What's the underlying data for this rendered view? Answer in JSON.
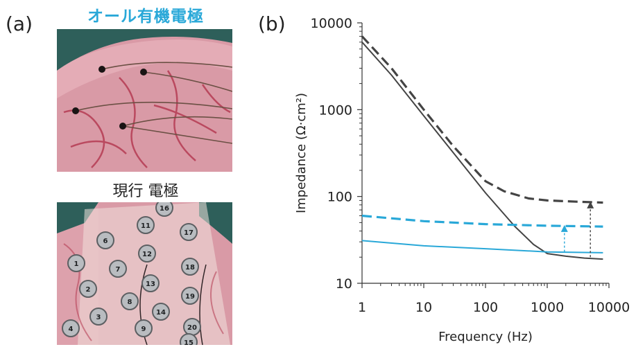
{
  "panels": {
    "a_label": "(a)",
    "b_label": "(b)",
    "organic_caption": "オール有機電極",
    "current_caption": "現行 電極"
  },
  "electrode_numbers": [
    "16",
    "11",
    "17",
    "6",
    "12",
    "1",
    "7",
    "18",
    "13",
    "2",
    "19",
    "8",
    "14",
    "3",
    "9",
    "20",
    "4",
    "15"
  ],
  "colors": {
    "organic": "#29a8d8",
    "current": "#444444",
    "tissue": "#d99aa6"
  },
  "chart_data": {
    "type": "line",
    "xlabel": "Frequency (Hz)",
    "ylabel": "Impedance (Ω·cm²)",
    "xscale": "log",
    "yscale": "log",
    "xlim": [
      1,
      10000
    ],
    "ylim": [
      10,
      10000
    ],
    "xticks": [
      "1",
      "10",
      "100",
      "1000",
      "10000"
    ],
    "yticks": [
      "10",
      "100",
      "1000",
      "10000"
    ],
    "series": [
      {
        "style": "dashed",
        "color": "#444444",
        "x": [
          1,
          3,
          10,
          30,
          100,
          200,
          500,
          1000,
          3000,
          8000
        ],
        "y": [
          7000,
          3000,
          1000,
          380,
          150,
          115,
          95,
          90,
          87,
          85
        ]
      },
      {
        "style": "solid",
        "color": "#444444",
        "x": [
          1,
          3,
          10,
          30,
          100,
          300,
          600,
          1000,
          2000,
          4000,
          8000
        ],
        "y": [
          6000,
          2500,
          850,
          320,
          110,
          45,
          28,
          22,
          20.5,
          19.5,
          19
        ]
      },
      {
        "style": "dashed",
        "color": "#29a8d8",
        "x": [
          1,
          10,
          100,
          1000,
          8000
        ],
        "y": [
          60,
          52,
          48,
          46,
          45
        ]
      },
      {
        "style": "solid",
        "color": "#29a8d8",
        "x": [
          1,
          10,
          100,
          1000,
          8000
        ],
        "y": [
          31,
          27,
          25,
          23,
          22.5
        ]
      }
    ],
    "annotations": [
      {
        "type": "arrow",
        "style": "dotted",
        "color": "#29a8d8",
        "x": 1900,
        "y_from": 23,
        "y_to": 46
      },
      {
        "type": "arrow",
        "style": "dotted",
        "color": "#444444",
        "x": 5000,
        "y_from": 20,
        "y_to": 86
      }
    ]
  }
}
